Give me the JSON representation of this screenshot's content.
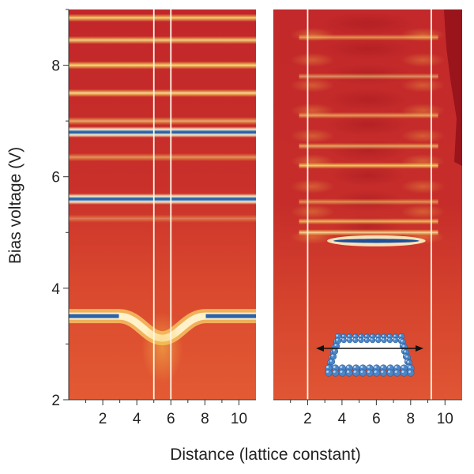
{
  "chart_data": {
    "type": "heatmap",
    "xlabel": "Distance (lattice constant)",
    "ylabel": "Bias voltage (V)",
    "ylim": [
      2,
      9
    ],
    "y_ticks": [
      2,
      4,
      6,
      8
    ],
    "y_tick_labels": [
      "2",
      "4",
      "6",
      "8"
    ],
    "colormap": [
      "#2a5fa8",
      "#ffffff",
      "#f7e35a",
      "#e2432a",
      "#b81e22"
    ],
    "panels": [
      {
        "name": "left",
        "xlim": [
          0,
          11
        ],
        "x_ticks": [
          2,
          4,
          6,
          8,
          10
        ],
        "x_tick_labels": [
          "2",
          "4",
          "6",
          "8",
          "10"
        ],
        "background_color": "#cf3a28",
        "vertical_markers": [
          5,
          6
        ],
        "bright_bands": [
          {
            "y": 8.85,
            "intensity": 0.8
          },
          {
            "y": 8.45,
            "intensity": 0.8
          },
          {
            "y": 8.0,
            "intensity": 0.85
          },
          {
            "y": 7.5,
            "intensity": 0.85
          },
          {
            "y": 7.0,
            "intensity": 0.6
          },
          {
            "y": 6.35,
            "intensity": 0.5
          },
          {
            "y": 5.25,
            "intensity": 0.35
          }
        ],
        "dark_bands": [
          {
            "y": 6.8,
            "x_dip": null
          },
          {
            "y": 5.6,
            "x_dip": null
          },
          {
            "y": 3.5,
            "x_dip": 5.5
          }
        ]
      },
      {
        "name": "right",
        "xlim": [
          0,
          11
        ],
        "x_ticks": [
          2,
          4,
          6,
          8,
          10
        ],
        "x_tick_labels": [
          "2",
          "4",
          "6",
          "8",
          "10"
        ],
        "background_color": "#c8342a",
        "vertical_markers": [
          2,
          9.2
        ],
        "bright_bands": [
          {
            "y": 8.5,
            "intensity": 0.5
          },
          {
            "y": 7.8,
            "intensity": 0.5
          },
          {
            "y": 7.1,
            "intensity": 0.55
          },
          {
            "y": 6.55,
            "intensity": 0.6
          },
          {
            "y": 6.2,
            "intensity": 0.75
          },
          {
            "y": 5.55,
            "intensity": 0.5
          },
          {
            "y": 5.2,
            "intensity": 0.65
          },
          {
            "y": 5.0,
            "intensity": 0.8
          }
        ],
        "dark_bands": [
          {
            "y": 4.85,
            "x_start": 3.5,
            "x_end": 8.5
          }
        ]
      }
    ],
    "inset": {
      "icon": "atom-corral-icon",
      "atom_color": "#4a86c8"
    }
  }
}
